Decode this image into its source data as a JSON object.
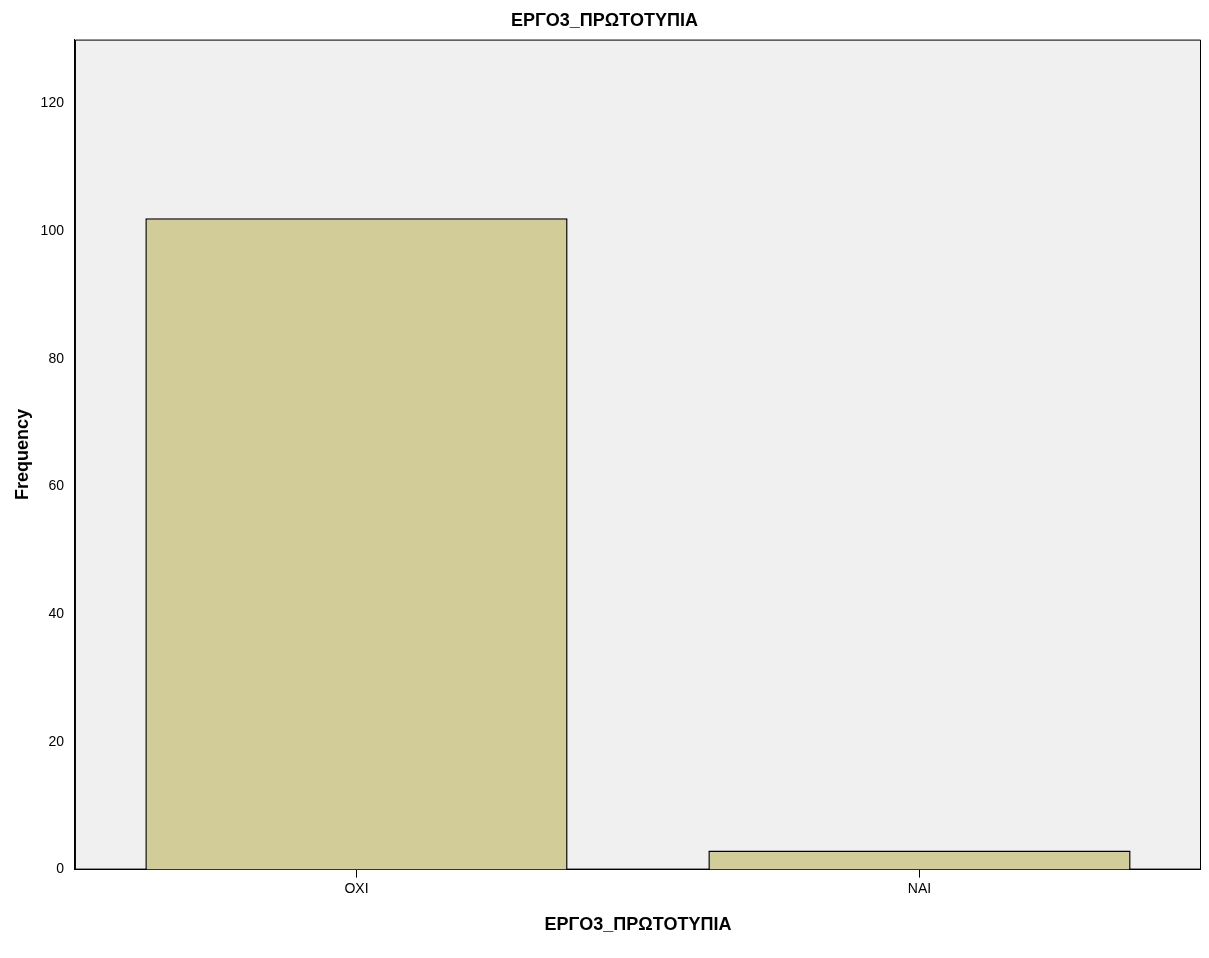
{
  "chart_data": {
    "type": "bar",
    "title": "ΕΡΓΟ3_ΠΡΩΤΟΤΥΠΙΑ",
    "xlabel": "ΕΡΓΟ3_ΠΡΩΤΟΤΥΠΙΑ",
    "ylabel": "Frequency",
    "categories": [
      "ΟΧΙ",
      "ΝΑΙ"
    ],
    "values": [
      102,
      3
    ],
    "color": "#d2cd98",
    "ylim": [
      0,
      130
    ],
    "yticks": [
      0,
      20,
      40,
      60,
      80,
      100,
      120
    ],
    "grid": false,
    "legend": false
  }
}
